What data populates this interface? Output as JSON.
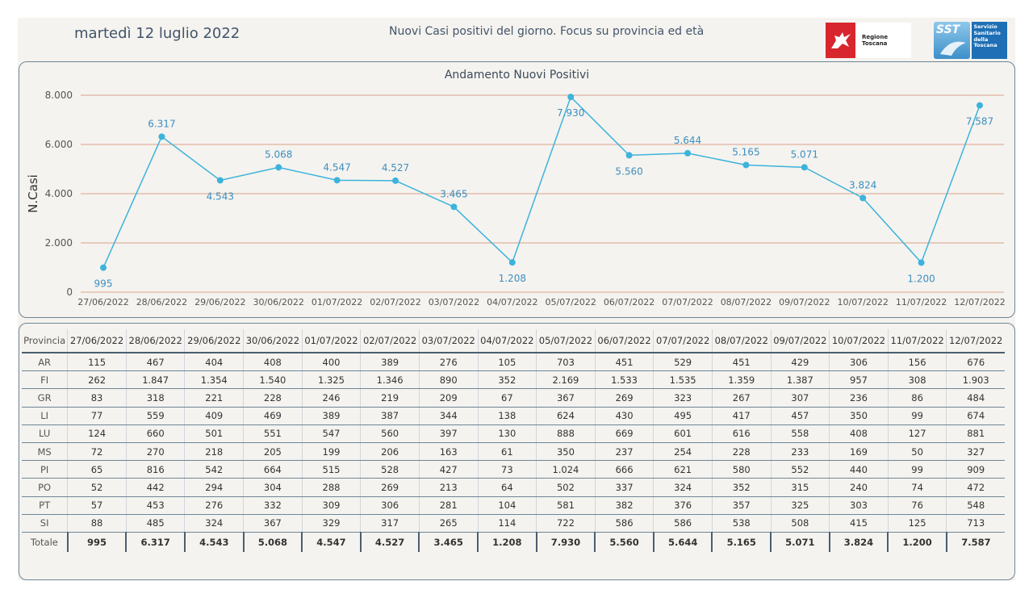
{
  "header": {
    "date": "martedì 12 luglio 2022",
    "title": "Nuovi Casi positivi del giorno. Focus su provincia ed età",
    "logo_regione": "Regione Toscana",
    "logo_sst_short": "SST",
    "logo_sst_name": "Servizio Sanitario della Toscana"
  },
  "colors": {
    "line": "#3cb3dc",
    "grid": "#d9a088",
    "label": "#3b8fc0",
    "axis_text": "#555555"
  },
  "chart_data": {
    "type": "line",
    "title": "Andamento Nuovi Positivi",
    "xlabel": "",
    "ylabel": "N.Casi",
    "ylim": [
      0,
      8000
    ],
    "yticks": [
      "0",
      "2.000",
      "4.000",
      "6.000",
      "8.000"
    ],
    "grid": true,
    "categories": [
      "27/06/2022",
      "28/06/2022",
      "29/06/2022",
      "30/06/2022",
      "01/07/2022",
      "02/07/2022",
      "03/07/2022",
      "04/07/2022",
      "05/07/2022",
      "06/07/2022",
      "07/07/2022",
      "08/07/2022",
      "09/07/2022",
      "10/07/2022",
      "11/07/2022",
      "12/07/2022"
    ],
    "values": [
      995,
      6317,
      4543,
      5068,
      4547,
      4527,
      3465,
      1208,
      7930,
      5560,
      5644,
      5165,
      5071,
      3824,
      1200,
      7587
    ],
    "data_labels": [
      "995",
      "6.317",
      "4.543",
      "5.068",
      "4.547",
      "4.527",
      "3.465",
      "1.208",
      "7.930",
      "5.560",
      "5.644",
      "5.165",
      "5.071",
      "3.824",
      "1.200",
      "7.587"
    ],
    "label_position": [
      "below",
      "above",
      "below",
      "above",
      "above",
      "above",
      "above",
      "below",
      "below",
      "below",
      "above",
      "above",
      "above",
      "above",
      "below",
      "below"
    ]
  },
  "table": {
    "header_label": "Provincia",
    "columns": [
      "27/06/2022",
      "28/06/2022",
      "29/06/2022",
      "30/06/2022",
      "01/07/2022",
      "02/07/2022",
      "03/07/2022",
      "04/07/2022",
      "05/07/2022",
      "06/07/2022",
      "07/07/2022",
      "08/07/2022",
      "09/07/2022",
      "10/07/2022",
      "11/07/2022",
      "12/07/2022"
    ],
    "rows": [
      {
        "provincia": "AR",
        "values": [
          "115",
          "467",
          "404",
          "408",
          "400",
          "389",
          "276",
          "105",
          "703",
          "451",
          "529",
          "451",
          "429",
          "306",
          "156",
          "676"
        ]
      },
      {
        "provincia": "FI",
        "values": [
          "262",
          "1.847",
          "1.354",
          "1.540",
          "1.325",
          "1.346",
          "890",
          "352",
          "2.169",
          "1.533",
          "1.535",
          "1.359",
          "1.387",
          "957",
          "308",
          "1.903"
        ]
      },
      {
        "provincia": "GR",
        "values": [
          "83",
          "318",
          "221",
          "228",
          "246",
          "219",
          "209",
          "67",
          "367",
          "269",
          "323",
          "267",
          "307",
          "236",
          "86",
          "484"
        ]
      },
      {
        "provincia": "LI",
        "values": [
          "77",
          "559",
          "409",
          "469",
          "389",
          "387",
          "344",
          "138",
          "624",
          "430",
          "495",
          "417",
          "457",
          "350",
          "99",
          "674"
        ]
      },
      {
        "provincia": "LU",
        "values": [
          "124",
          "660",
          "501",
          "551",
          "547",
          "560",
          "397",
          "130",
          "888",
          "669",
          "601",
          "616",
          "558",
          "408",
          "127",
          "881"
        ]
      },
      {
        "provincia": "MS",
        "values": [
          "72",
          "270",
          "218",
          "205",
          "199",
          "206",
          "163",
          "61",
          "350",
          "237",
          "254",
          "228",
          "233",
          "169",
          "50",
          "327"
        ]
      },
      {
        "provincia": "PI",
        "values": [
          "65",
          "816",
          "542",
          "664",
          "515",
          "528",
          "427",
          "73",
          "1.024",
          "666",
          "621",
          "580",
          "552",
          "440",
          "99",
          "909"
        ]
      },
      {
        "provincia": "PO",
        "values": [
          "52",
          "442",
          "294",
          "304",
          "288",
          "269",
          "213",
          "64",
          "502",
          "337",
          "324",
          "352",
          "315",
          "240",
          "74",
          "472"
        ]
      },
      {
        "provincia": "PT",
        "values": [
          "57",
          "453",
          "276",
          "332",
          "309",
          "306",
          "281",
          "104",
          "581",
          "382",
          "376",
          "357",
          "325",
          "303",
          "76",
          "548"
        ]
      },
      {
        "provincia": "SI",
        "values": [
          "88",
          "485",
          "324",
          "367",
          "329",
          "317",
          "265",
          "114",
          "722",
          "586",
          "586",
          "538",
          "508",
          "415",
          "125",
          "713"
        ]
      }
    ],
    "total": {
      "provincia": "Totale",
      "values": [
        "995",
        "6.317",
        "4.543",
        "5.068",
        "4.547",
        "4.527",
        "3.465",
        "1.208",
        "7.930",
        "5.560",
        "5.644",
        "5.165",
        "5.071",
        "3.824",
        "1.200",
        "7.587"
      ]
    }
  }
}
